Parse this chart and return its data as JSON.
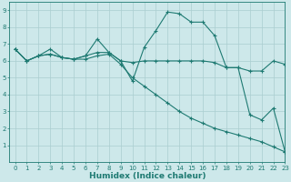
{
  "xlabel": "Humidex (Indice chaleur)",
  "xlim": [
    -0.5,
    23
  ],
  "ylim": [
    0,
    9.5
  ],
  "xticks": [
    0,
    1,
    2,
    3,
    4,
    5,
    6,
    7,
    8,
    9,
    10,
    11,
    12,
    13,
    14,
    15,
    16,
    17,
    18,
    19,
    20,
    21,
    22,
    23
  ],
  "yticks": [
    1,
    2,
    3,
    4,
    5,
    6,
    7,
    8,
    9
  ],
  "bg_color": "#cde8ea",
  "grid_color": "#aacdd0",
  "line_color": "#1e7a72",
  "line1_x": [
    0,
    1,
    2,
    3,
    4,
    5,
    6,
    7,
    8,
    9,
    10,
    11,
    12,
    13,
    14,
    15,
    16,
    17,
    18,
    19,
    20,
    21,
    22,
    23
  ],
  "line1_y": [
    6.7,
    6.0,
    6.3,
    6.7,
    6.2,
    6.1,
    6.3,
    7.3,
    6.5,
    6.0,
    4.8,
    6.8,
    7.8,
    8.9,
    8.8,
    8.3,
    8.3,
    7.5,
    5.6,
    5.6,
    2.8,
    2.5,
    3.2,
    0.6
  ],
  "line2_x": [
    0,
    1,
    2,
    3,
    4,
    5,
    6,
    7,
    8,
    9,
    10,
    11,
    12,
    13,
    14,
    15,
    16,
    17,
    18,
    19,
    20,
    21,
    22,
    23
  ],
  "line2_y": [
    6.7,
    6.0,
    6.3,
    6.4,
    6.2,
    6.1,
    6.3,
    6.5,
    6.5,
    6.0,
    5.9,
    6.0,
    6.0,
    6.0,
    6.0,
    6.0,
    6.0,
    5.9,
    5.6,
    5.6,
    5.4,
    5.4,
    6.0,
    5.8
  ],
  "line3_x": [
    0,
    1,
    2,
    3,
    4,
    5,
    6,
    7,
    8,
    9,
    10,
    11,
    12,
    13,
    14,
    15,
    16,
    17,
    18,
    19,
    20,
    21,
    22,
    23
  ],
  "line3_y": [
    6.7,
    6.0,
    6.3,
    6.4,
    6.2,
    6.1,
    6.1,
    6.3,
    6.4,
    5.8,
    5.0,
    4.5,
    4.0,
    3.5,
    3.0,
    2.6,
    2.3,
    2.0,
    1.8,
    1.6,
    1.4,
    1.2,
    0.9,
    0.6
  ],
  "tick_fontsize": 5.0,
  "xlabel_fontsize": 6.5,
  "linewidth": 0.8,
  "markersize": 2.5
}
